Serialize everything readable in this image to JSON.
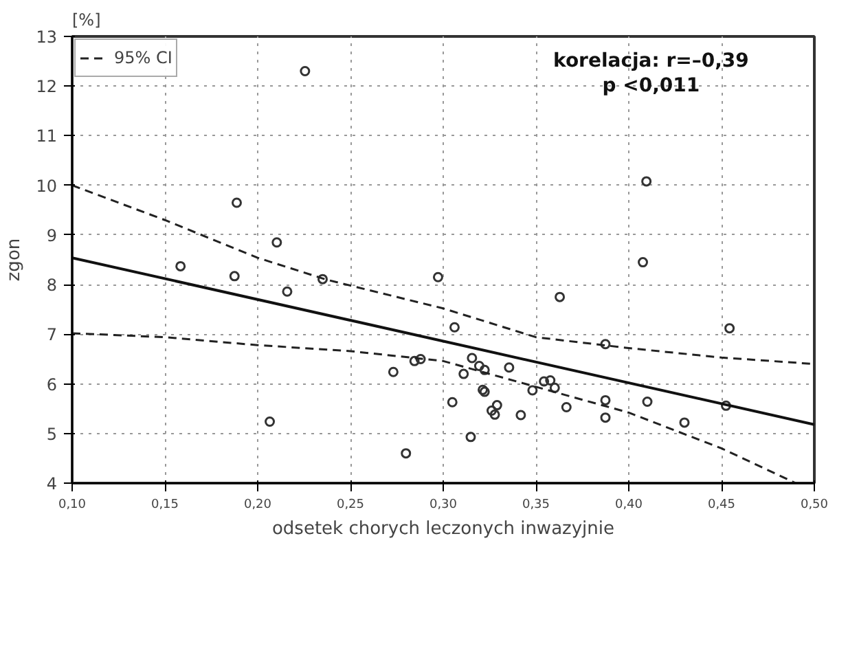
{
  "chart_data": {
    "type": "scatter",
    "xlabel": "odsetek chorych leczonych inwazyjnie",
    "ylabel": "zgon",
    "annotations": [
      "[%]",
      "korelacja: r=–0,39",
      "p <0,011"
    ],
    "xlim": [
      0.1,
      0.5
    ],
    "ylim": [
      4,
      13
    ],
    "xticks": [
      {
        "value": 0.1,
        "label": "0,10"
      },
      {
        "value": 0.15,
        "label": "0,15"
      },
      {
        "value": 0.2,
        "label": "0,20"
      },
      {
        "value": 0.25,
        "label": "0,25"
      },
      {
        "value": 0.3,
        "label": "0,30"
      },
      {
        "value": 0.35,
        "label": "0,35"
      },
      {
        "value": 0.4,
        "label": "0,40"
      },
      {
        "value": 0.45,
        "label": "0,45"
      },
      {
        "value": 0.5,
        "label": "0,50"
      }
    ],
    "yticks": [
      4,
      5,
      6,
      7,
      8,
      9,
      10,
      11,
      12,
      13
    ],
    "grid": true,
    "legend": "top left",
    "series": [
      {
        "color": "#333333",
        "marker": "circle",
        "x": [
          0.2255,
          0.1887,
          0.2103,
          0.1584,
          0.1875,
          0.235,
          0.2159,
          0.2065,
          0.2972,
          0.3628,
          0.3061,
          0.2731,
          0.2845,
          0.2878,
          0.3155,
          0.3194,
          0.3223,
          0.311,
          0.3355,
          0.3543,
          0.3577,
          0.3601,
          0.3481,
          0.3213,
          0.3223,
          0.3049,
          0.329,
          0.3261,
          0.3278,
          0.3418,
          0.3664,
          0.3148,
          0.2799,
          0.4095,
          0.4076,
          0.4543,
          0.3874,
          0.3874,
          0.41,
          0.3874,
          0.43,
          0.4524
        ],
        "values": [
          12.3,
          9.65,
          8.85,
          8.37,
          8.17,
          8.11,
          7.86,
          5.24,
          8.15,
          7.75,
          7.14,
          6.24,
          6.46,
          6.5,
          6.52,
          6.36,
          6.28,
          6.2,
          6.33,
          6.05,
          6.07,
          5.92,
          5.87,
          5.88,
          5.84,
          5.63,
          5.57,
          5.46,
          5.38,
          5.37,
          5.53,
          4.93,
          4.6,
          10.08,
          8.45,
          7.12,
          6.8,
          5.67,
          5.64,
          5.32,
          5.22,
          5.56
        ]
      },
      {
        "type": "line",
        "color": "#111111",
        "line_style": "solid",
        "x": [
          0.1,
          0.5
        ],
        "values": [
          8.54,
          5.18
        ]
      },
      {
        "type": "line",
        "color": "#222222",
        "line_style": "dashed",
        "name": "95% CI",
        "x": [
          0.1,
          0.15,
          0.2,
          0.237,
          0.3,
          0.35,
          0.4,
          0.45,
          0.5
        ],
        "values": [
          10.0,
          9.3,
          8.54,
          8.1,
          7.52,
          6.94,
          6.72,
          6.53,
          6.4
        ]
      },
      {
        "type": "line",
        "color": "#222222",
        "line_style": "dashed",
        "x": [
          0.1,
          0.15,
          0.2,
          0.25,
          0.3,
          0.35,
          0.4,
          0.45,
          0.49
        ],
        "values": [
          7.02,
          6.94,
          6.78,
          6.66,
          6.46,
          5.94,
          5.42,
          4.7,
          4.0
        ]
      }
    ]
  }
}
